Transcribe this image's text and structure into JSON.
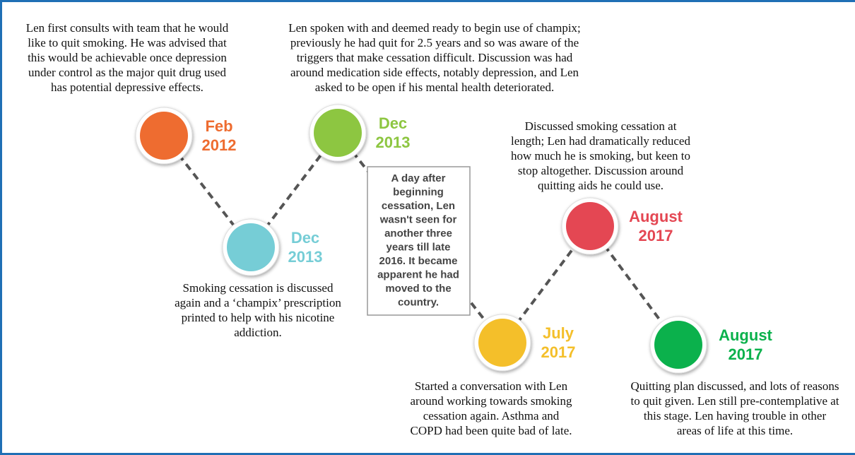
{
  "nodes": [
    {
      "month": "Feb",
      "year": "2012",
      "description": [
        "Len first consults with team that he would",
        "like to quit smoking. He was advised that",
        "this would be achievable once depression",
        "under control as the major quit drug used",
        "has potential depressive effects."
      ]
    },
    {
      "month": "Dec",
      "year": "2013",
      "description": [
        "Smoking cessation is discussed",
        "again and a ‘champix’ prescription",
        "printed to help with his nicotine",
        "addiction."
      ]
    },
    {
      "month": "Dec",
      "year": "2013",
      "description": [
        "Len spoken with and deemed ready to begin use of champix;",
        "previously he had quit for 2.5 years and so was aware of the",
        "triggers that make cessation difficult. Discussion was had",
        "around medication side effects, notably depression, and Len",
        "asked to be open if his mental health deteriorated."
      ]
    },
    {
      "month": "July",
      "year": "2017",
      "description": [
        "Started a conversation with Len",
        "around working towards smoking",
        "cessation again. Asthma and",
        "COPD had been quite bad of late."
      ]
    },
    {
      "month": "August",
      "year": "2017",
      "description": [
        "Discussed smoking cessation at",
        "length; Len had dramatically reduced",
        "how much he is smoking, but keen to",
        "stop altogether. Discussion around",
        "quitting aids he could use."
      ]
    },
    {
      "month": "August",
      "year": "2017",
      "description": [
        "Quitting plan discussed, and lots of reasons",
        "to quit given. Len still pre-contemplative at",
        "this stage. Len having trouble in other",
        "areas of life at this time."
      ]
    }
  ],
  "callout": [
    "A day after",
    "beginning",
    "cessation, Len",
    "wasn't seen for",
    "another three",
    "years till late",
    "2016. It became",
    "apparent he had",
    "moved to the",
    "country."
  ]
}
